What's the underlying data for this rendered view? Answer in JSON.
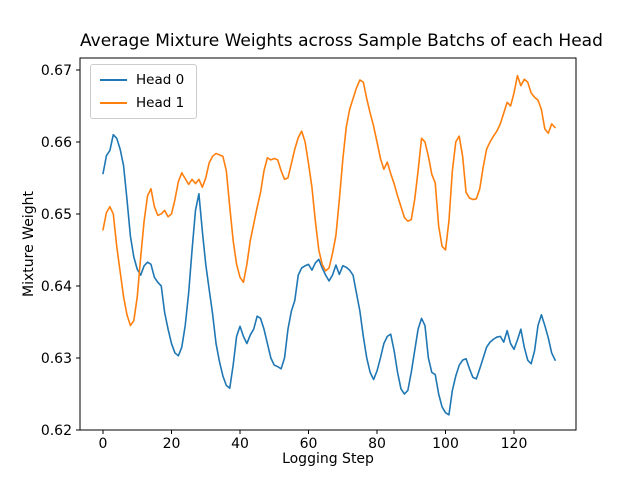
{
  "chart_data": {
    "type": "line",
    "title": "Average Mixture Weights across Sample Batchs of each Head",
    "xlabel": "Logging Step",
    "ylabel": "Mixture Weight",
    "x_start": 0,
    "x_step": 1,
    "xlim": [
      -6.72,
      138.1
    ],
    "ylim": [
      0.62,
      0.67165
    ],
    "xticks": [
      0,
      20,
      40,
      60,
      80,
      100,
      120
    ],
    "yticks": [
      0.62,
      0.63,
      0.64,
      0.65,
      0.66,
      0.67
    ],
    "ytick_decimals": 2,
    "grid": false,
    "legend_position": "upper left",
    "series": [
      {
        "name": "Head 0",
        "color": "#1f77b4",
        "values": [
          0.6556,
          0.6581,
          0.6588,
          0.661,
          0.6605,
          0.659,
          0.6567,
          0.652,
          0.6469,
          0.644,
          0.6423,
          0.6415,
          0.6428,
          0.6433,
          0.643,
          0.6412,
          0.6405,
          0.64,
          0.6363,
          0.634,
          0.632,
          0.6307,
          0.6303,
          0.6315,
          0.6345,
          0.639,
          0.645,
          0.6505,
          0.6528,
          0.6476,
          0.643,
          0.6395,
          0.6361,
          0.632,
          0.6295,
          0.6275,
          0.6262,
          0.6258,
          0.629,
          0.633,
          0.6344,
          0.633,
          0.632,
          0.6332,
          0.634,
          0.6358,
          0.6355,
          0.634,
          0.632,
          0.63,
          0.629,
          0.6288,
          0.6285,
          0.63,
          0.634,
          0.6365,
          0.638,
          0.6415,
          0.6425,
          0.6428,
          0.643,
          0.6422,
          0.6432,
          0.6437,
          0.6425,
          0.6415,
          0.6407,
          0.6415,
          0.6429,
          0.6416,
          0.6428,
          0.6426,
          0.6422,
          0.6415,
          0.639,
          0.6365,
          0.633,
          0.63,
          0.628,
          0.627,
          0.6282,
          0.63,
          0.632,
          0.633,
          0.6333,
          0.631,
          0.628,
          0.6257,
          0.625,
          0.6255,
          0.628,
          0.631,
          0.634,
          0.6355,
          0.6345,
          0.63,
          0.628,
          0.6277,
          0.625,
          0.6232,
          0.6224,
          0.6221,
          0.6255,
          0.6275,
          0.629,
          0.6297,
          0.6299,
          0.6285,
          0.6273,
          0.6271,
          0.6285,
          0.63,
          0.6315,
          0.6322,
          0.6326,
          0.6329,
          0.633,
          0.6322,
          0.6338,
          0.632,
          0.6312,
          0.6325,
          0.634,
          0.6315,
          0.6297,
          0.6292,
          0.631,
          0.6345,
          0.636,
          0.6345,
          0.6328,
          0.6307,
          0.6297
        ]
      },
      {
        "name": "Head 1",
        "color": "#ff7f0e",
        "values": [
          0.6478,
          0.6502,
          0.651,
          0.65,
          0.6455,
          0.642,
          0.6385,
          0.636,
          0.6345,
          0.6352,
          0.6385,
          0.644,
          0.649,
          0.6525,
          0.6535,
          0.651,
          0.6498,
          0.65,
          0.6505,
          0.6496,
          0.65,
          0.652,
          0.6545,
          0.6557,
          0.6549,
          0.6541,
          0.6548,
          0.6542,
          0.6548,
          0.6537,
          0.655,
          0.6571,
          0.658,
          0.6584,
          0.6582,
          0.658,
          0.656,
          0.651,
          0.6463,
          0.643,
          0.6412,
          0.6405,
          0.643,
          0.6463,
          0.6486,
          0.6509,
          0.653,
          0.656,
          0.6578,
          0.6575,
          0.6577,
          0.6575,
          0.656,
          0.6548,
          0.655,
          0.657,
          0.659,
          0.6606,
          0.6615,
          0.66,
          0.657,
          0.6537,
          0.649,
          0.645,
          0.643,
          0.6421,
          0.6425,
          0.6445,
          0.647,
          0.652,
          0.6575,
          0.662,
          0.6645,
          0.666,
          0.6675,
          0.6686,
          0.6683,
          0.666,
          0.664,
          0.6622,
          0.66,
          0.6577,
          0.6562,
          0.6572,
          0.6556,
          0.6542,
          0.6525,
          0.651,
          0.6495,
          0.649,
          0.6492,
          0.652,
          0.656,
          0.6605,
          0.66,
          0.658,
          0.6555,
          0.6543,
          0.6483,
          0.6455,
          0.645,
          0.649,
          0.656,
          0.66,
          0.6608,
          0.658,
          0.653,
          0.6522,
          0.652,
          0.6521,
          0.6535,
          0.6565,
          0.659,
          0.66,
          0.6608,
          0.6615,
          0.6625,
          0.664,
          0.6655,
          0.665,
          0.6668,
          0.6692,
          0.6678,
          0.6687,
          0.6683,
          0.6668,
          0.6662,
          0.6658,
          0.6645,
          0.6618,
          0.6612,
          0.6625,
          0.662
        ]
      }
    ]
  },
  "colors": {
    "background": "#ffffff",
    "text": "#000000",
    "spine": "#000000",
    "legend_border": "#cccccc"
  }
}
